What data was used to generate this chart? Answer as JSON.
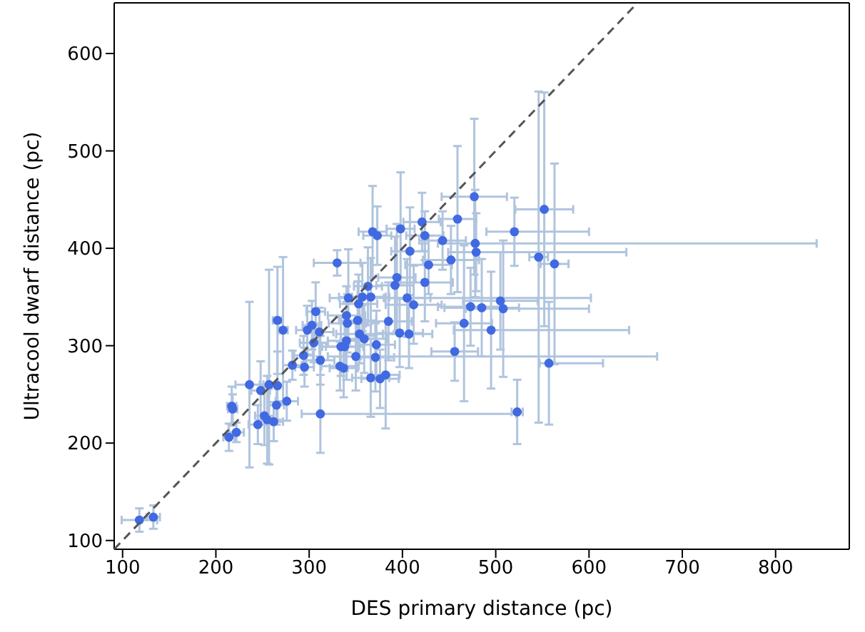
{
  "chart_data": {
    "type": "scatter",
    "xlabel": "DES primary distance (pc)",
    "ylabel": "Ultracool dwarf distance (pc)",
    "xlim": [
      91,
      879
    ],
    "ylim": [
      91,
      652
    ],
    "xticks": [
      100,
      200,
      300,
      400,
      500,
      600,
      700,
      800
    ],
    "yticks": [
      100,
      200,
      300,
      400,
      500,
      600
    ],
    "series": [
      {
        "color": "#4169e1",
        "marker": "circle",
        "x": [
          118,
          133,
          214,
          222,
          217,
          218,
          236,
          248,
          245,
          252,
          255,
          257,
          262,
          265,
          266,
          266,
          272,
          276,
          282,
          294,
          295,
          298,
          303,
          305,
          307,
          311,
          312,
          312,
          330,
          333,
          334,
          337,
          338,
          340,
          340,
          341,
          342,
          350,
          352,
          353,
          354,
          357,
          359,
          363,
          366,
          366,
          368,
          371,
          373,
          372,
          376,
          382,
          385,
          392,
          394,
          398,
          397,
          405,
          407,
          408,
          412,
          421,
          424,
          424,
          428,
          443,
          452,
          456,
          459,
          466,
          473,
          477,
          478,
          479,
          485,
          495,
          505,
          508,
          520,
          523,
          546,
          552,
          557,
          563
        ],
        "values": [
          121,
          124,
          206,
          211,
          238,
          235,
          260,
          254,
          219,
          228,
          224,
          260,
          222,
          239,
          259,
          326,
          316,
          243,
          280,
          290,
          278,
          316,
          321,
          303,
          335,
          314,
          285,
          230,
          385,
          279,
          299,
          277,
          299,
          305,
          331,
          323,
          349,
          289,
          326,
          343,
          312,
          350,
          307,
          361,
          350,
          267,
          417,
          288,
          413,
          301,
          266,
          270,
          325,
          362,
          370,
          420,
          313,
          349,
          312,
          397,
          342,
          427,
          413,
          365,
          383,
          408,
          388,
          294,
          430,
          323,
          340,
          453,
          405,
          396,
          339,
          316,
          346,
          338,
          417,
          232,
          391,
          440,
          282,
          384
        ],
        "xerrors": [
          19,
          7,
          6,
          8,
          5,
          5,
          15,
          10,
          10,
          10,
          6,
          10,
          10,
          8,
          6,
          5,
          5,
          12,
          10,
          10,
          10,
          12,
          10,
          15,
          10,
          15,
          15,
          [
            292,
            522
          ],
          25,
          20,
          20,
          15,
          20,
          20,
          20,
          20,
          [
            322,
            602
          ],
          [
            320,
            673
          ],
          20,
          20,
          25,
          25,
          25,
          15,
          20,
          20,
          15,
          20,
          15,
          20,
          20,
          15,
          25,
          20,
          20,
          15,
          25,
          25,
          25,
          20,
          30,
          20,
          20,
          30,
          25,
          25,
          30,
          25,
          20,
          30,
          35,
          35,
          [
            438,
            844
          ],
          [
            449,
            640
          ],
          40,
          [
            455,
            643
          ],
          40,
          [
            468,
            600
          ],
          [
            490,
            600
          ],
          6,
          10,
          31,
          [
            547,
            615
          ],
          15
        ],
        "errors": [
          12,
          12,
          14,
          10,
          20,
          15,
          85,
          30,
          20,
          30,
          45,
          [
            178,
            378
          ],
          20,
          20,
          35,
          55,
          75,
          20,
          15,
          20,
          20,
          25,
          25,
          20,
          30,
          25,
          25,
          40,
          13,
          25,
          30,
          30,
          25,
          40,
          30,
          30,
          50,
          35,
          40,
          30,
          30,
          35,
          35,
          40,
          40,
          40,
          47,
          35,
          30,
          35,
          30,
          55,
          40,
          50,
          55,
          58,
          35,
          40,
          35,
          45,
          40,
          30,
          25,
          40,
          30,
          30,
          35,
          30,
          75,
          80,
          40,
          80,
          55,
          40,
          50,
          60,
          50,
          70,
          35,
          33,
          170,
          120,
          63,
          103
        ]
      },
      {
        "type": "line",
        "color": "#555555",
        "line_style": "dashed",
        "marker": "none",
        "x": [
          91,
          652
        ],
        "values": [
          91,
          652
        ]
      }
    ]
  }
}
